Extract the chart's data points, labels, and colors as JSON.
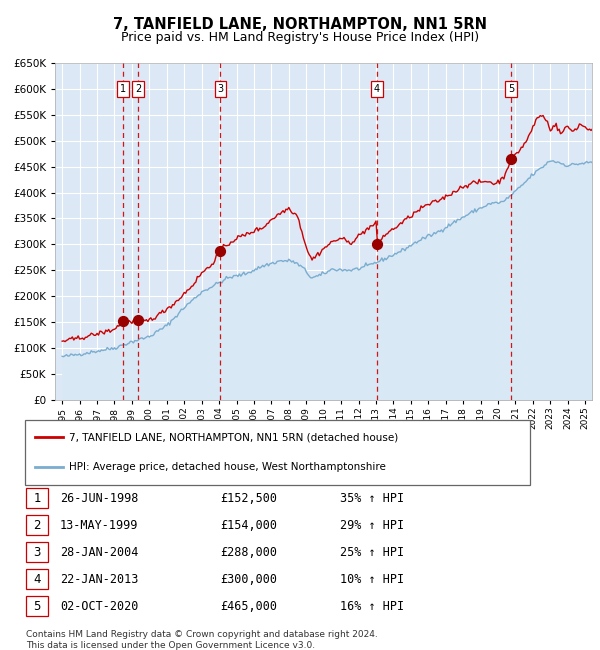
{
  "title": "7, TANFIELD LANE, NORTHAMPTON, NN1 5RN",
  "subtitle": "Price paid vs. HM Land Registry's House Price Index (HPI)",
  "legend_line1": "7, TANFIELD LANE, NORTHAMPTON, NN1 5RN (detached house)",
  "legend_line2": "HPI: Average price, detached house, West Northamptonshire",
  "footer1": "Contains HM Land Registry data © Crown copyright and database right 2024.",
  "footer2": "This data is licensed under the Open Government Licence v3.0.",
  "sales": [
    {
      "num": 1,
      "date": "26-JUN-1998",
      "year": 1998.49,
      "price": 152500,
      "hpi_pct": "35% ↑ HPI"
    },
    {
      "num": 2,
      "date": "13-MAY-1999",
      "year": 1999.36,
      "price": 154000,
      "hpi_pct": "29% ↑ HPI"
    },
    {
      "num": 3,
      "date": "28-JAN-2004",
      "year": 2004.08,
      "price": 288000,
      "hpi_pct": "25% ↑ HPI"
    },
    {
      "num": 4,
      "date": "22-JAN-2013",
      "year": 2013.06,
      "price": 300000,
      "hpi_pct": "10% ↑ HPI"
    },
    {
      "num": 5,
      "date": "02-OCT-2020",
      "year": 2020.75,
      "price": 465000,
      "hpi_pct": "16% ↑ HPI"
    }
  ],
  "ylim": [
    0,
    650000
  ],
  "xlim_start": 1994.6,
  "xlim_end": 2025.4,
  "price_line_color": "#cc0000",
  "hpi_line_color": "#7aadcf",
  "hpi_fill_color": "#d9e8f5",
  "background_color": "#dce8f5",
  "grid_color": "#ffffff",
  "vline_color": "#cc0000",
  "sale_marker_color": "#990000",
  "title_fontsize": 10.5,
  "subtitle_fontsize": 9.0
}
